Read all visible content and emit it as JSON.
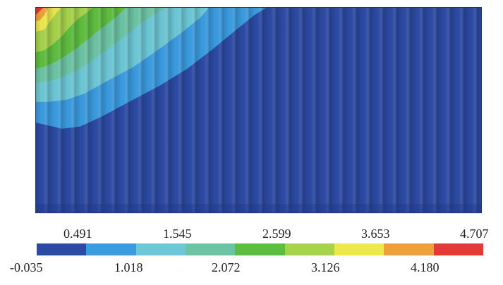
{
  "chart_data": {
    "type": "heatmap",
    "title": "",
    "xlabel": "",
    "ylabel": "",
    "colorbar": {
      "min": -0.035,
      "max": 4.707,
      "ticks_top": [
        "0.491",
        "1.545",
        "2.599",
        "3.653",
        "4.707"
      ],
      "ticks_bottom": [
        "-0.035",
        "1.018",
        "2.072",
        "3.126",
        "4.180"
      ],
      "colors": [
        "#2c4aa3",
        "#3a9be0",
        "#6cc7d6",
        "#6cc4a5",
        "#5ebd3f",
        "#a6d34a",
        "#ece84e",
        "#eea03a",
        "#e23a35"
      ]
    },
    "contours": [
      {
        "level": 0.491,
        "x": [
          0.0,
          0.03,
          0.06,
          0.1,
          0.17,
          0.24,
          0.3,
          0.36,
          0.42,
          0.48,
          0.52,
          0.56,
          0.59,
          0.6
        ],
        "y": [
          0.73,
          0.74,
          0.77,
          0.76,
          0.75,
          0.7,
          0.64,
          0.58,
          0.5,
          0.4,
          0.28,
          0.14,
          0.04,
          0.0
        ]
      },
      {
        "level": 1.018,
        "x": [
          0.0,
          0.02,
          0.06,
          0.1,
          0.15,
          0.21,
          0.28,
          0.34,
          0.4,
          0.45,
          0.49,
          0.52
        ],
        "y": [
          0.56,
          0.57,
          0.59,
          0.58,
          0.53,
          0.46,
          0.38,
          0.3,
          0.2,
          0.11,
          0.04,
          0.0
        ]
      },
      {
        "level": 1.545,
        "x": [
          0.0,
          0.03,
          0.07,
          0.11,
          0.16,
          0.22,
          0.28,
          0.33,
          0.37,
          0.39
        ],
        "y": [
          0.46,
          0.46,
          0.45,
          0.42,
          0.36,
          0.29,
          0.2,
          0.12,
          0.05,
          0.0
        ]
      },
      {
        "level": 2.072,
        "x": [
          0.0,
          0.03,
          0.06,
          0.1,
          0.14,
          0.19,
          0.23,
          0.27,
          0.3
        ],
        "y": [
          0.37,
          0.36,
          0.34,
          0.3,
          0.24,
          0.16,
          0.09,
          0.03,
          0.0
        ]
      },
      {
        "level": 2.599,
        "x": [
          0.0,
          0.02,
          0.05,
          0.08,
          0.11,
          0.15,
          0.18,
          0.2,
          0.21
        ],
        "y": [
          0.3,
          0.29,
          0.26,
          0.22,
          0.17,
          0.1,
          0.05,
          0.01,
          0.0
        ]
      },
      {
        "level": 3.126,
        "x": [
          0.0,
          0.02,
          0.04,
          0.06,
          0.08,
          0.1,
          0.12,
          0.13
        ],
        "y": [
          0.22,
          0.21,
          0.18,
          0.14,
          0.09,
          0.05,
          0.02,
          0.0
        ]
      },
      {
        "level": 3.653,
        "x": [
          0.0,
          0.02,
          0.03,
          0.04,
          0.05,
          0.06
        ],
        "y": [
          0.12,
          0.11,
          0.08,
          0.05,
          0.02,
          0.0
        ]
      },
      {
        "level": 4.18,
        "x": [
          0.0,
          0.01,
          0.02,
          0.025,
          0.03
        ],
        "y": [
          0.07,
          0.065,
          0.04,
          0.02,
          0.0
        ]
      },
      {
        "level": 4.707,
        "x": [
          0.0,
          0.01,
          0.02
        ],
        "y": [
          0.04,
          0.02,
          0.0
        ]
      }
    ]
  }
}
